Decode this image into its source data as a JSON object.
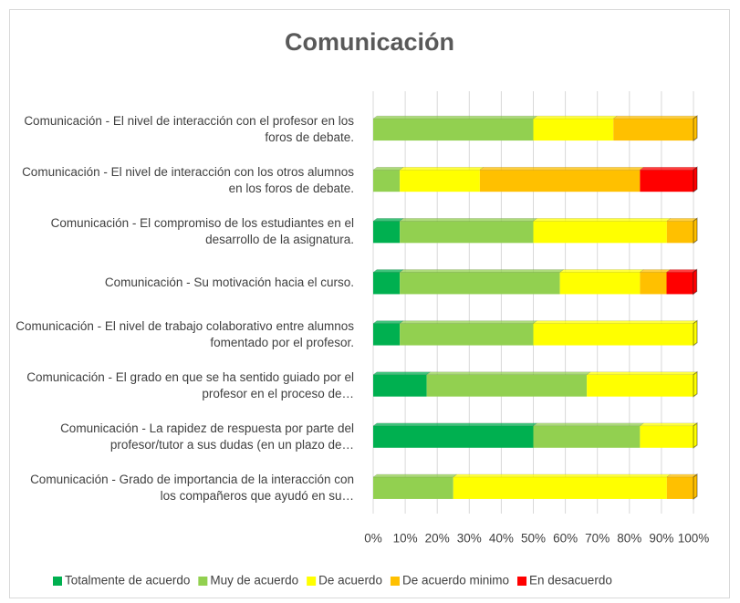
{
  "chart_data": {
    "type": "stacked_bar_100",
    "orientation": "horizontal",
    "title": "Comunicación",
    "categories": [
      "Comunicación - El nivel de interacción con el profesor en los foros de debate.",
      "Comunicación - El nivel de interacción con los otros alumnos en los foros de debate.",
      "Comunicación - El compromiso de los estudiantes en el desarrollo de la asignatura.",
      "Comunicación - Su motivación hacia el curso.",
      "Comunicación - El nivel de trabajo colaborativo entre alumnos fomentado por el profesor.",
      "Comunicación - El grado en que se ha sentido guiado por el profesor en el proceso de…",
      "Comunicación - La rapidez de respuesta por parte del profesor/tutor a sus dudas (en un plazo de…",
      "Comunicación - Grado de importancia de la interacción con los compañeros que ayudó en su…"
    ],
    "series": [
      {
        "name": "Totalmente de acuerdo",
        "color": "#00b050",
        "values": [
          0,
          0,
          8.3,
          8.3,
          8.3,
          16.7,
          50,
          0
        ]
      },
      {
        "name": "Muy de acuerdo",
        "color": "#92d050",
        "values": [
          50,
          8.3,
          41.7,
          50,
          41.7,
          50,
          33.3,
          25
        ]
      },
      {
        "name": "De acuerdo",
        "color": "#ffff00",
        "values": [
          25,
          25,
          41.7,
          25,
          50,
          33.3,
          16.7,
          66.7
        ]
      },
      {
        "name": "De acuerdo minimo",
        "color": "#ffc000",
        "values": [
          25,
          50,
          8.3,
          8.3,
          0,
          0,
          0,
          8.3
        ]
      },
      {
        "name": "En desacuerdo",
        "color": "#ff0000",
        "values": [
          0,
          16.7,
          0,
          8.3,
          0,
          0,
          0,
          0
        ]
      }
    ],
    "xlim": [
      0,
      100
    ],
    "xticks": [
      {
        "value": 0,
        "label": "0%"
      },
      {
        "value": 10,
        "label": "10%"
      },
      {
        "value": 20,
        "label": "20%"
      },
      {
        "value": 30,
        "label": "30%"
      },
      {
        "value": 40,
        "label": "40%"
      },
      {
        "value": 50,
        "label": "50%"
      },
      {
        "value": 60,
        "label": "60%"
      },
      {
        "value": 70,
        "label": "70%"
      },
      {
        "value": 80,
        "label": "80%"
      },
      {
        "value": 90,
        "label": "90%"
      },
      {
        "value": 100,
        "label": "100%"
      }
    ],
    "grid": true,
    "legend": "bottom"
  }
}
